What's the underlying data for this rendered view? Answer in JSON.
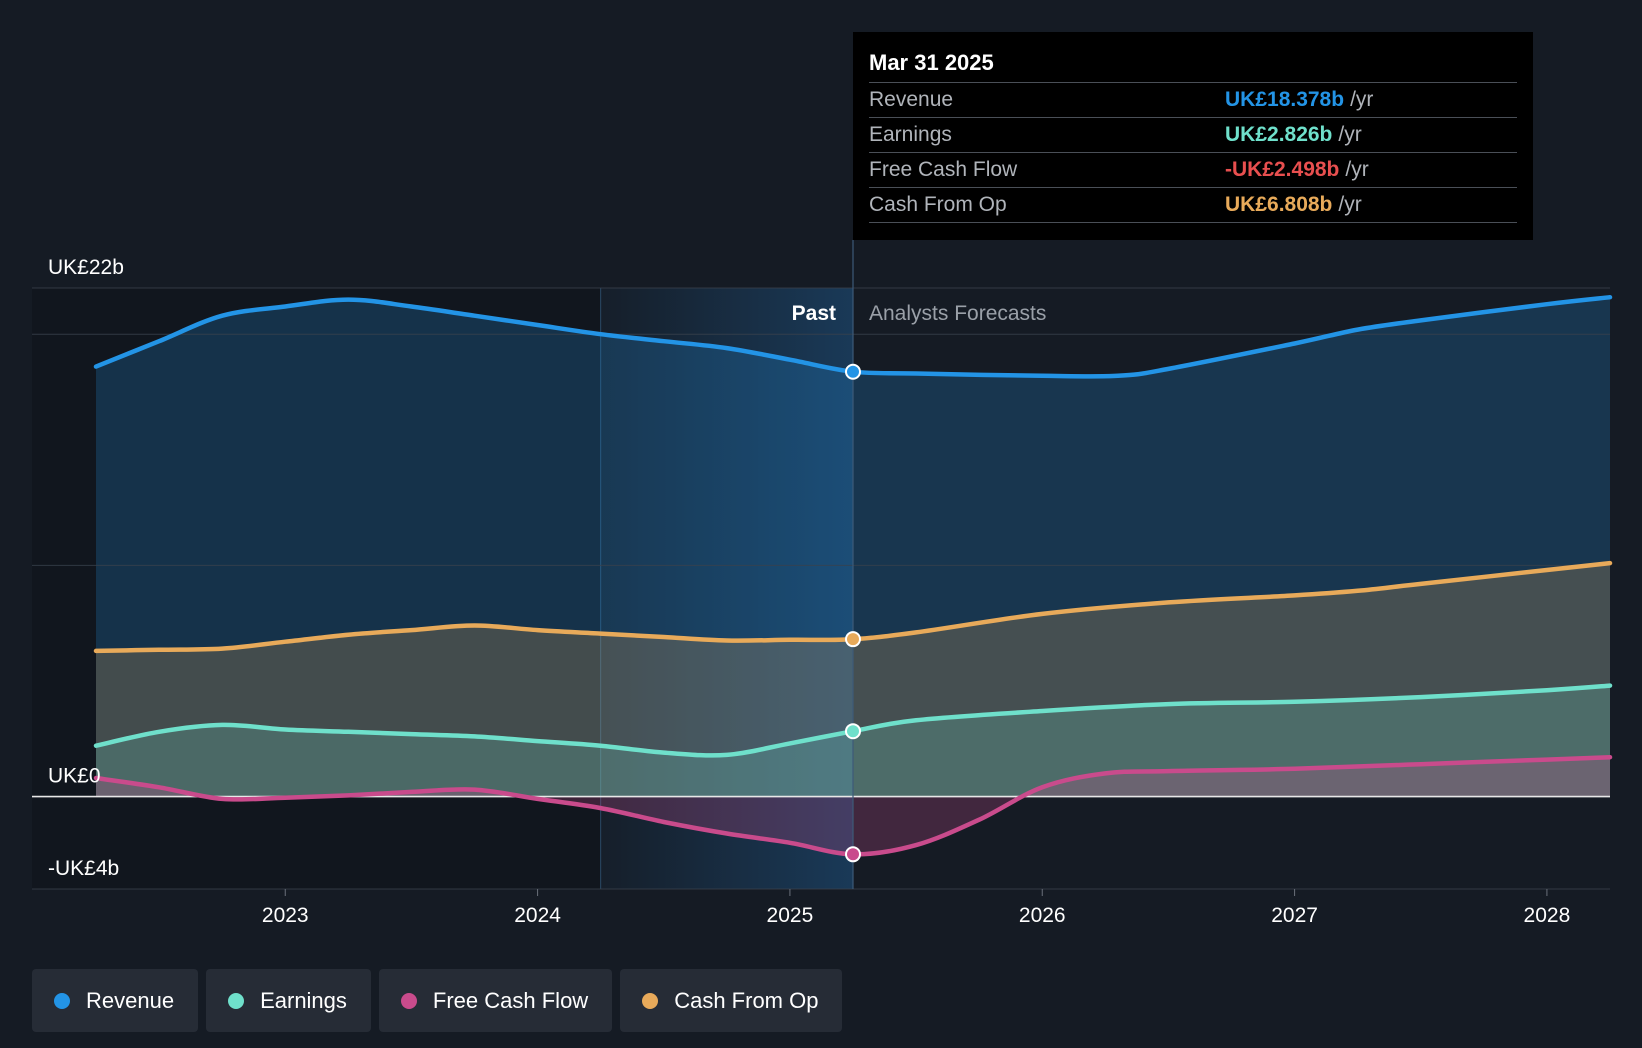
{
  "chart_data": {
    "type": "area",
    "title": "",
    "currency": "UK£",
    "x_min": 2022.25,
    "x_max": 2028.25,
    "divider_x": 2025.25,
    "highlight_start": 2024.25,
    "ylim": [
      -4,
      22
    ],
    "y_ticks": [
      {
        "value": 22,
        "label": "UK£22b"
      },
      {
        "value": 0,
        "label": "UK£0"
      },
      {
        "value": -4,
        "label": "-UK£4b"
      }
    ],
    "gridlines": [
      22,
      20,
      10,
      0,
      -4
    ],
    "x_ticks": [
      {
        "value": 2023,
        "label": "2023"
      },
      {
        "value": 2024,
        "label": "2024"
      },
      {
        "value": 2025,
        "label": "2025"
      },
      {
        "value": 2026,
        "label": "2026"
      },
      {
        "value": 2027,
        "label": "2027"
      },
      {
        "value": 2028,
        "label": "2028"
      }
    ],
    "past_label": "Past",
    "forecast_label": "Analysts Forecasts",
    "series": [
      {
        "name": "Revenue",
        "key": "revenue",
        "color": "#2394e6",
        "marker_value": 18.378,
        "points": [
          [
            2022.25,
            18.6
          ],
          [
            2022.5,
            19.7
          ],
          [
            2022.75,
            20.8
          ],
          [
            2023.0,
            21.2
          ],
          [
            2023.25,
            21.5
          ],
          [
            2023.5,
            21.2
          ],
          [
            2023.75,
            20.8
          ],
          [
            2024.0,
            20.4
          ],
          [
            2024.25,
            20.0
          ],
          [
            2024.5,
            19.7
          ],
          [
            2024.75,
            19.4
          ],
          [
            2025.0,
            18.9
          ],
          [
            2025.25,
            18.378
          ],
          [
            2025.5,
            18.3
          ],
          [
            2026.0,
            18.2
          ],
          [
            2026.3,
            18.2
          ],
          [
            2026.5,
            18.5
          ],
          [
            2027.0,
            19.6
          ],
          [
            2027.25,
            20.2
          ],
          [
            2027.5,
            20.6
          ],
          [
            2028.0,
            21.3
          ],
          [
            2028.25,
            21.6
          ]
        ]
      },
      {
        "name": "Earnings",
        "key": "earnings",
        "color": "#6fe0cb",
        "marker_value": 2.826,
        "points": [
          [
            2022.25,
            2.2
          ],
          [
            2022.5,
            2.8
          ],
          [
            2022.75,
            3.1
          ],
          [
            2023.0,
            2.9
          ],
          [
            2023.25,
            2.8
          ],
          [
            2023.5,
            2.7
          ],
          [
            2023.75,
            2.6
          ],
          [
            2024.0,
            2.4
          ],
          [
            2024.25,
            2.2
          ],
          [
            2024.5,
            1.9
          ],
          [
            2024.75,
            1.8
          ],
          [
            2025.0,
            2.3
          ],
          [
            2025.25,
            2.826
          ],
          [
            2025.5,
            3.3
          ],
          [
            2026.0,
            3.7
          ],
          [
            2026.5,
            4.0
          ],
          [
            2027.0,
            4.1
          ],
          [
            2027.5,
            4.3
          ],
          [
            2028.0,
            4.6
          ],
          [
            2028.25,
            4.8
          ]
        ]
      },
      {
        "name": "Free Cash Flow",
        "key": "fcf",
        "color": "#c94b8c",
        "marker_value": -2.498,
        "points": [
          [
            2022.25,
            0.8
          ],
          [
            2022.5,
            0.4
          ],
          [
            2022.75,
            -0.1
          ],
          [
            2023.0,
            -0.05
          ],
          [
            2023.25,
            0.05
          ],
          [
            2023.5,
            0.2
          ],
          [
            2023.75,
            0.3
          ],
          [
            2024.0,
            -0.1
          ],
          [
            2024.25,
            -0.5
          ],
          [
            2024.5,
            -1.1
          ],
          [
            2024.75,
            -1.6
          ],
          [
            2025.0,
            -2.0
          ],
          [
            2025.25,
            -2.498
          ],
          [
            2025.5,
            -2.1
          ],
          [
            2025.75,
            -1.0
          ],
          [
            2026.0,
            0.4
          ],
          [
            2026.25,
            1.0
          ],
          [
            2026.5,
            1.1
          ],
          [
            2027.0,
            1.2
          ],
          [
            2027.5,
            1.4
          ],
          [
            2028.0,
            1.6
          ],
          [
            2028.25,
            1.7
          ]
        ]
      },
      {
        "name": "Cash From Op",
        "key": "cfo",
        "color": "#e8aa5a",
        "marker_value": 6.808,
        "points": [
          [
            2022.25,
            6.3
          ],
          [
            2022.5,
            6.35
          ],
          [
            2022.75,
            6.4
          ],
          [
            2023.0,
            6.7
          ],
          [
            2023.25,
            7.0
          ],
          [
            2023.5,
            7.2
          ],
          [
            2023.75,
            7.4
          ],
          [
            2024.0,
            7.2
          ],
          [
            2024.25,
            7.05
          ],
          [
            2024.5,
            6.9
          ],
          [
            2024.75,
            6.75
          ],
          [
            2025.0,
            6.78
          ],
          [
            2025.25,
            6.808
          ],
          [
            2025.5,
            7.1
          ],
          [
            2026.0,
            7.9
          ],
          [
            2026.5,
            8.4
          ],
          [
            2027.0,
            8.7
          ],
          [
            2027.25,
            8.9
          ],
          [
            2027.5,
            9.2
          ],
          [
            2028.0,
            9.8
          ],
          [
            2028.25,
            10.1
          ]
        ]
      }
    ]
  },
  "tooltip": {
    "date": "Mar 31 2025",
    "rows": [
      {
        "label": "Revenue",
        "value": "UK£18.378b",
        "unit": "/yr",
        "color": "#2394e6"
      },
      {
        "label": "Earnings",
        "value": "UK£2.826b",
        "unit": "/yr",
        "color": "#6fe0cb"
      },
      {
        "label": "Free Cash Flow",
        "value": "-UK£2.498b",
        "unit": "/yr",
        "color": "#e84f4f"
      },
      {
        "label": "Cash From Op",
        "value": "UK£6.808b",
        "unit": "/yr",
        "color": "#e8aa5a"
      }
    ]
  },
  "legend": [
    {
      "label": "Revenue",
      "color": "#2394e6"
    },
    {
      "label": "Earnings",
      "color": "#6fe0cb"
    },
    {
      "label": "Free Cash Flow",
      "color": "#c94b8c"
    },
    {
      "label": "Cash From Op",
      "color": "#e8aa5a"
    }
  ]
}
